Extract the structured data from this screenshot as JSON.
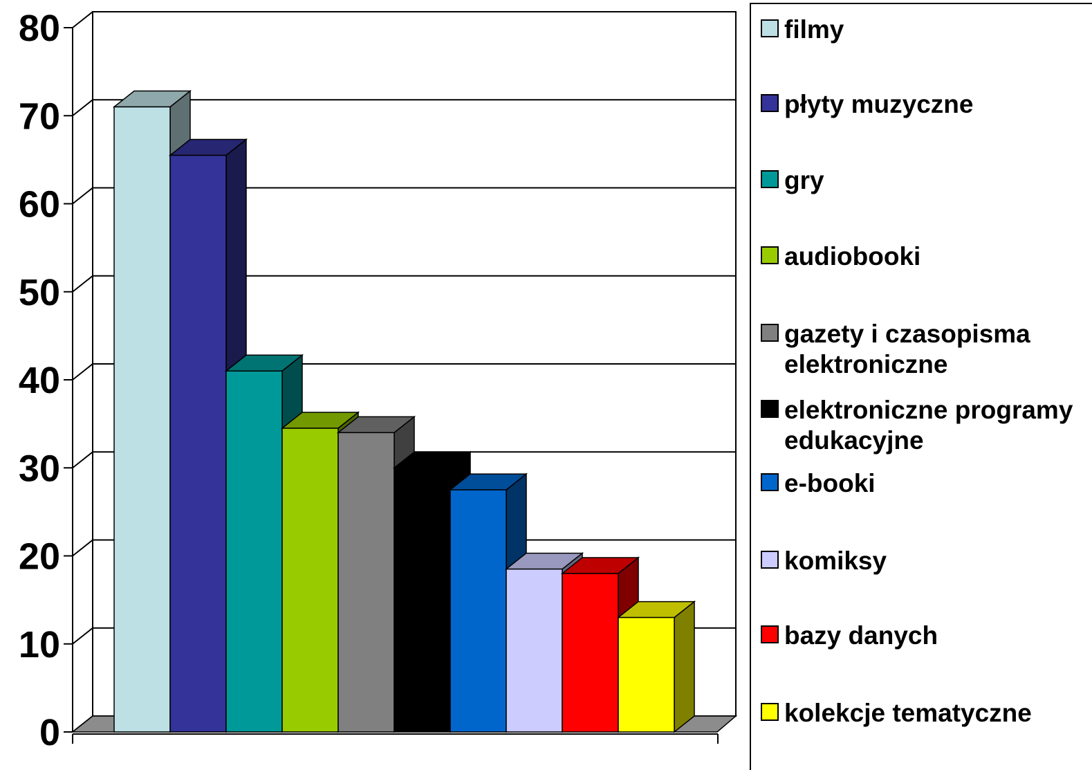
{
  "chart_data": {
    "type": "bar",
    "title": "",
    "xlabel": "",
    "ylabel": "",
    "ylim": [
      0,
      80
    ],
    "y_ticks": [
      0,
      10,
      20,
      30,
      40,
      50,
      60,
      70,
      80
    ],
    "grid": true,
    "legend_position": "right",
    "style": "3d",
    "series": [
      {
        "name": "filmy",
        "value": 71,
        "color": "#BDE0E4"
      },
      {
        "name": "płyty muzyczne",
        "value": 65.5,
        "color": "#333399"
      },
      {
        "name": "gry",
        "value": 41,
        "color": "#009999"
      },
      {
        "name": "audiobooki",
        "value": 34.5,
        "color": "#99CC00"
      },
      {
        "name": "gazety i czasopisma elektroniczne",
        "value": 34,
        "color": "#808080"
      },
      {
        "name": "elektroniczne programy edukacyjne",
        "value": 30,
        "color": "#000000"
      },
      {
        "name": "e-booki",
        "value": 27.5,
        "color": "#0066CC"
      },
      {
        "name": "komiksy",
        "value": 18.5,
        "color": "#CCCCFF"
      },
      {
        "name": "bazy danych",
        "value": 18,
        "color": "#FF0000"
      },
      {
        "name": "kolekcje tematyczne",
        "value": 13,
        "color": "#FFFF00"
      }
    ]
  }
}
